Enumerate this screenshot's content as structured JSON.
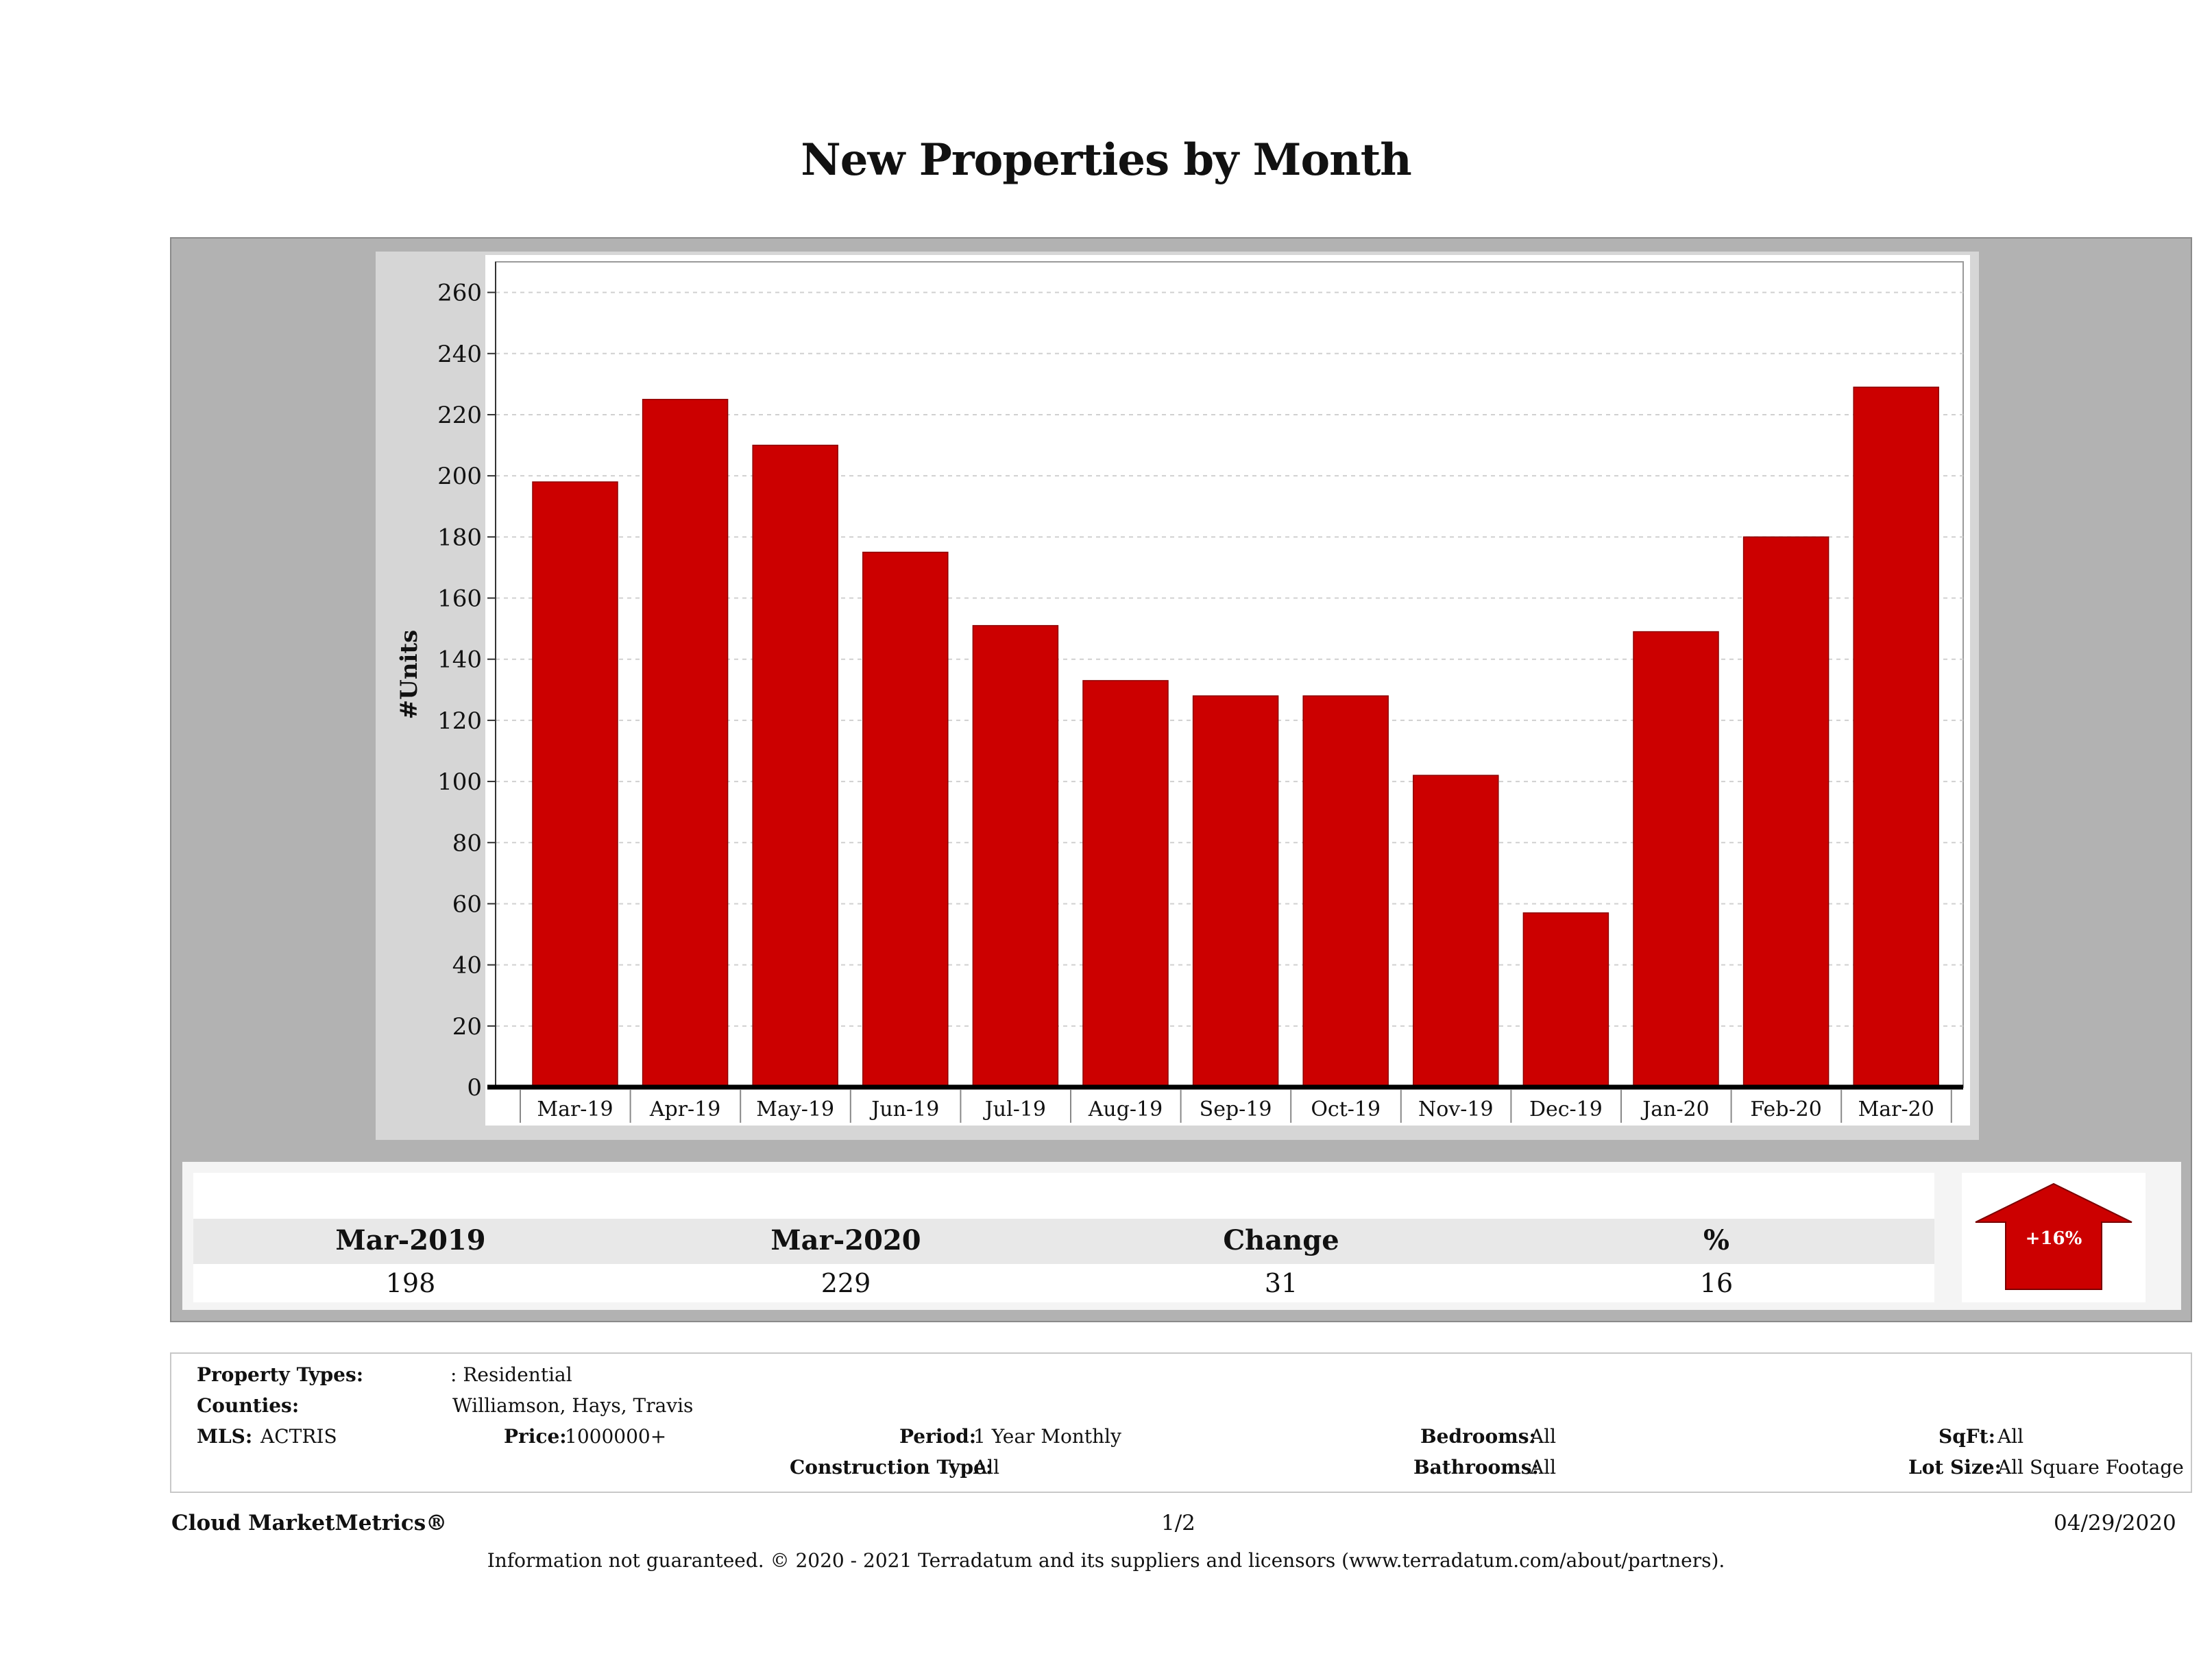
{
  "title": "New Properties by Month",
  "chart_data": {
    "type": "bar",
    "categories": [
      "Mar-19",
      "Apr-19",
      "May-19",
      "Jun-19",
      "Jul-19",
      "Aug-19",
      "Sep-19",
      "Oct-19",
      "Nov-19",
      "Dec-19",
      "Jan-20",
      "Feb-20",
      "Mar-20"
    ],
    "values": [
      198,
      225,
      210,
      175,
      151,
      133,
      128,
      128,
      102,
      57,
      149,
      180,
      229
    ],
    "ylabel": "#Units",
    "xlabel": "",
    "ylim": [
      0,
      270
    ],
    "yticks": [
      0,
      20,
      40,
      60,
      80,
      100,
      120,
      140,
      160,
      180,
      200,
      220,
      240,
      260
    ],
    "bar_color": "#cc0000",
    "grid": true
  },
  "stats": {
    "headers": [
      "Mar-2019",
      "Mar-2020",
      "Change",
      "%"
    ],
    "values": [
      "198",
      "229",
      "31",
      "16"
    ],
    "badge": "+16%",
    "badge_color": "#cc0000"
  },
  "info": {
    "property_types_label": "Property Types:",
    "property_types_value": ": Residential",
    "counties_label": "Counties:",
    "counties_value": "Williamson, Hays, Travis",
    "mls_label": "MLS:",
    "mls_value": "ACTRIS",
    "price_label": "Price:",
    "price_value": "1000000+",
    "period_label": "Period:",
    "period_value": "1 Year Monthly",
    "construction_label": "Construction Type:",
    "construction_value": "All",
    "bedrooms_label": "Bedrooms:",
    "bedrooms_value": "All",
    "bathrooms_label": "Bathrooms:",
    "bathrooms_value": "All",
    "sqft_label": "SqFt:",
    "sqft_value": "All",
    "lotsize_label": "Lot Size:",
    "lotsize_value": "All Square Footage"
  },
  "footer": {
    "brand": "Cloud MarketMetrics®",
    "page": "1/2",
    "date": "04/29/2020",
    "disclaimer": "Information not guaranteed. © 2020 - 2021 Terradatum and its suppliers and licensors (www.terradatum.com/about/partners)."
  }
}
